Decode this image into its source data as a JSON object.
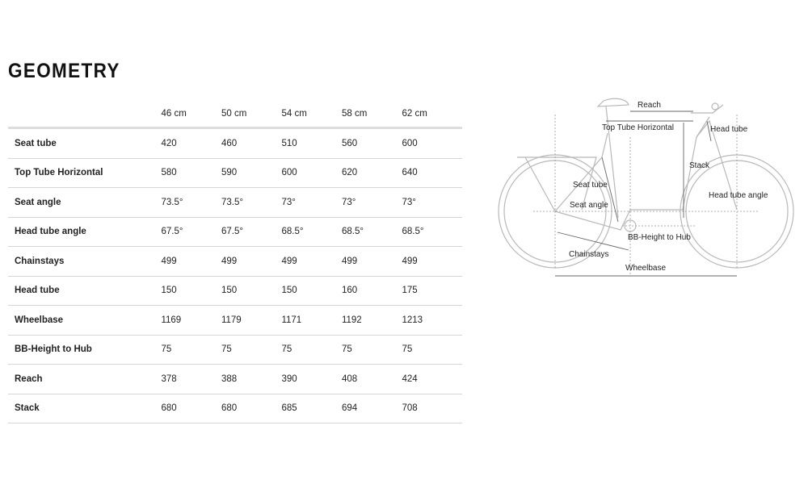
{
  "title": "GEOMETRY",
  "sizes": [
    "46 cm",
    "50 cm",
    "54 cm",
    "58 cm",
    "62 cm"
  ],
  "rows": [
    {
      "label": "Seat tube",
      "values": [
        "420",
        "460",
        "510",
        "560",
        "600"
      ]
    },
    {
      "label": "Top Tube Horizontal",
      "values": [
        "580",
        "590",
        "600",
        "620",
        "640"
      ]
    },
    {
      "label": "Seat angle",
      "values": [
        "73.5°",
        "73.5°",
        "73°",
        "73°",
        "73°"
      ]
    },
    {
      "label": "Head tube angle",
      "values": [
        "67.5°",
        "67.5°",
        "68.5°",
        "68.5°",
        "68.5°"
      ]
    },
    {
      "label": "Chainstays",
      "values": [
        "499",
        "499",
        "499",
        "499",
        "499"
      ]
    },
    {
      "label": "Head tube",
      "values": [
        "150",
        "150",
        "150",
        "160",
        "175"
      ]
    },
    {
      "label": "Wheelbase",
      "values": [
        "1169",
        "1179",
        "1171",
        "1192",
        "1213"
      ]
    },
    {
      "label": "BB-Height to Hub",
      "values": [
        "75",
        "75",
        "75",
        "75",
        "75"
      ]
    },
    {
      "label": "Reach",
      "values": [
        "378",
        "388",
        "390",
        "408",
        "424"
      ]
    },
    {
      "label": "Stack",
      "values": [
        "680",
        "680",
        "685",
        "694",
        "708"
      ]
    }
  ],
  "diagram": {
    "reach": "Reach",
    "top_tube": "Top Tube Horizontal",
    "head_tube": "Head tube",
    "stack": "Stack",
    "seat_tube": "Seat tube",
    "seat_angle": "Seat angle",
    "head_tube_angle": "Head tube angle",
    "bb_height": "BB-Height to Hub",
    "chainstays": "Chainstays",
    "wheelbase": "Wheelbase"
  }
}
